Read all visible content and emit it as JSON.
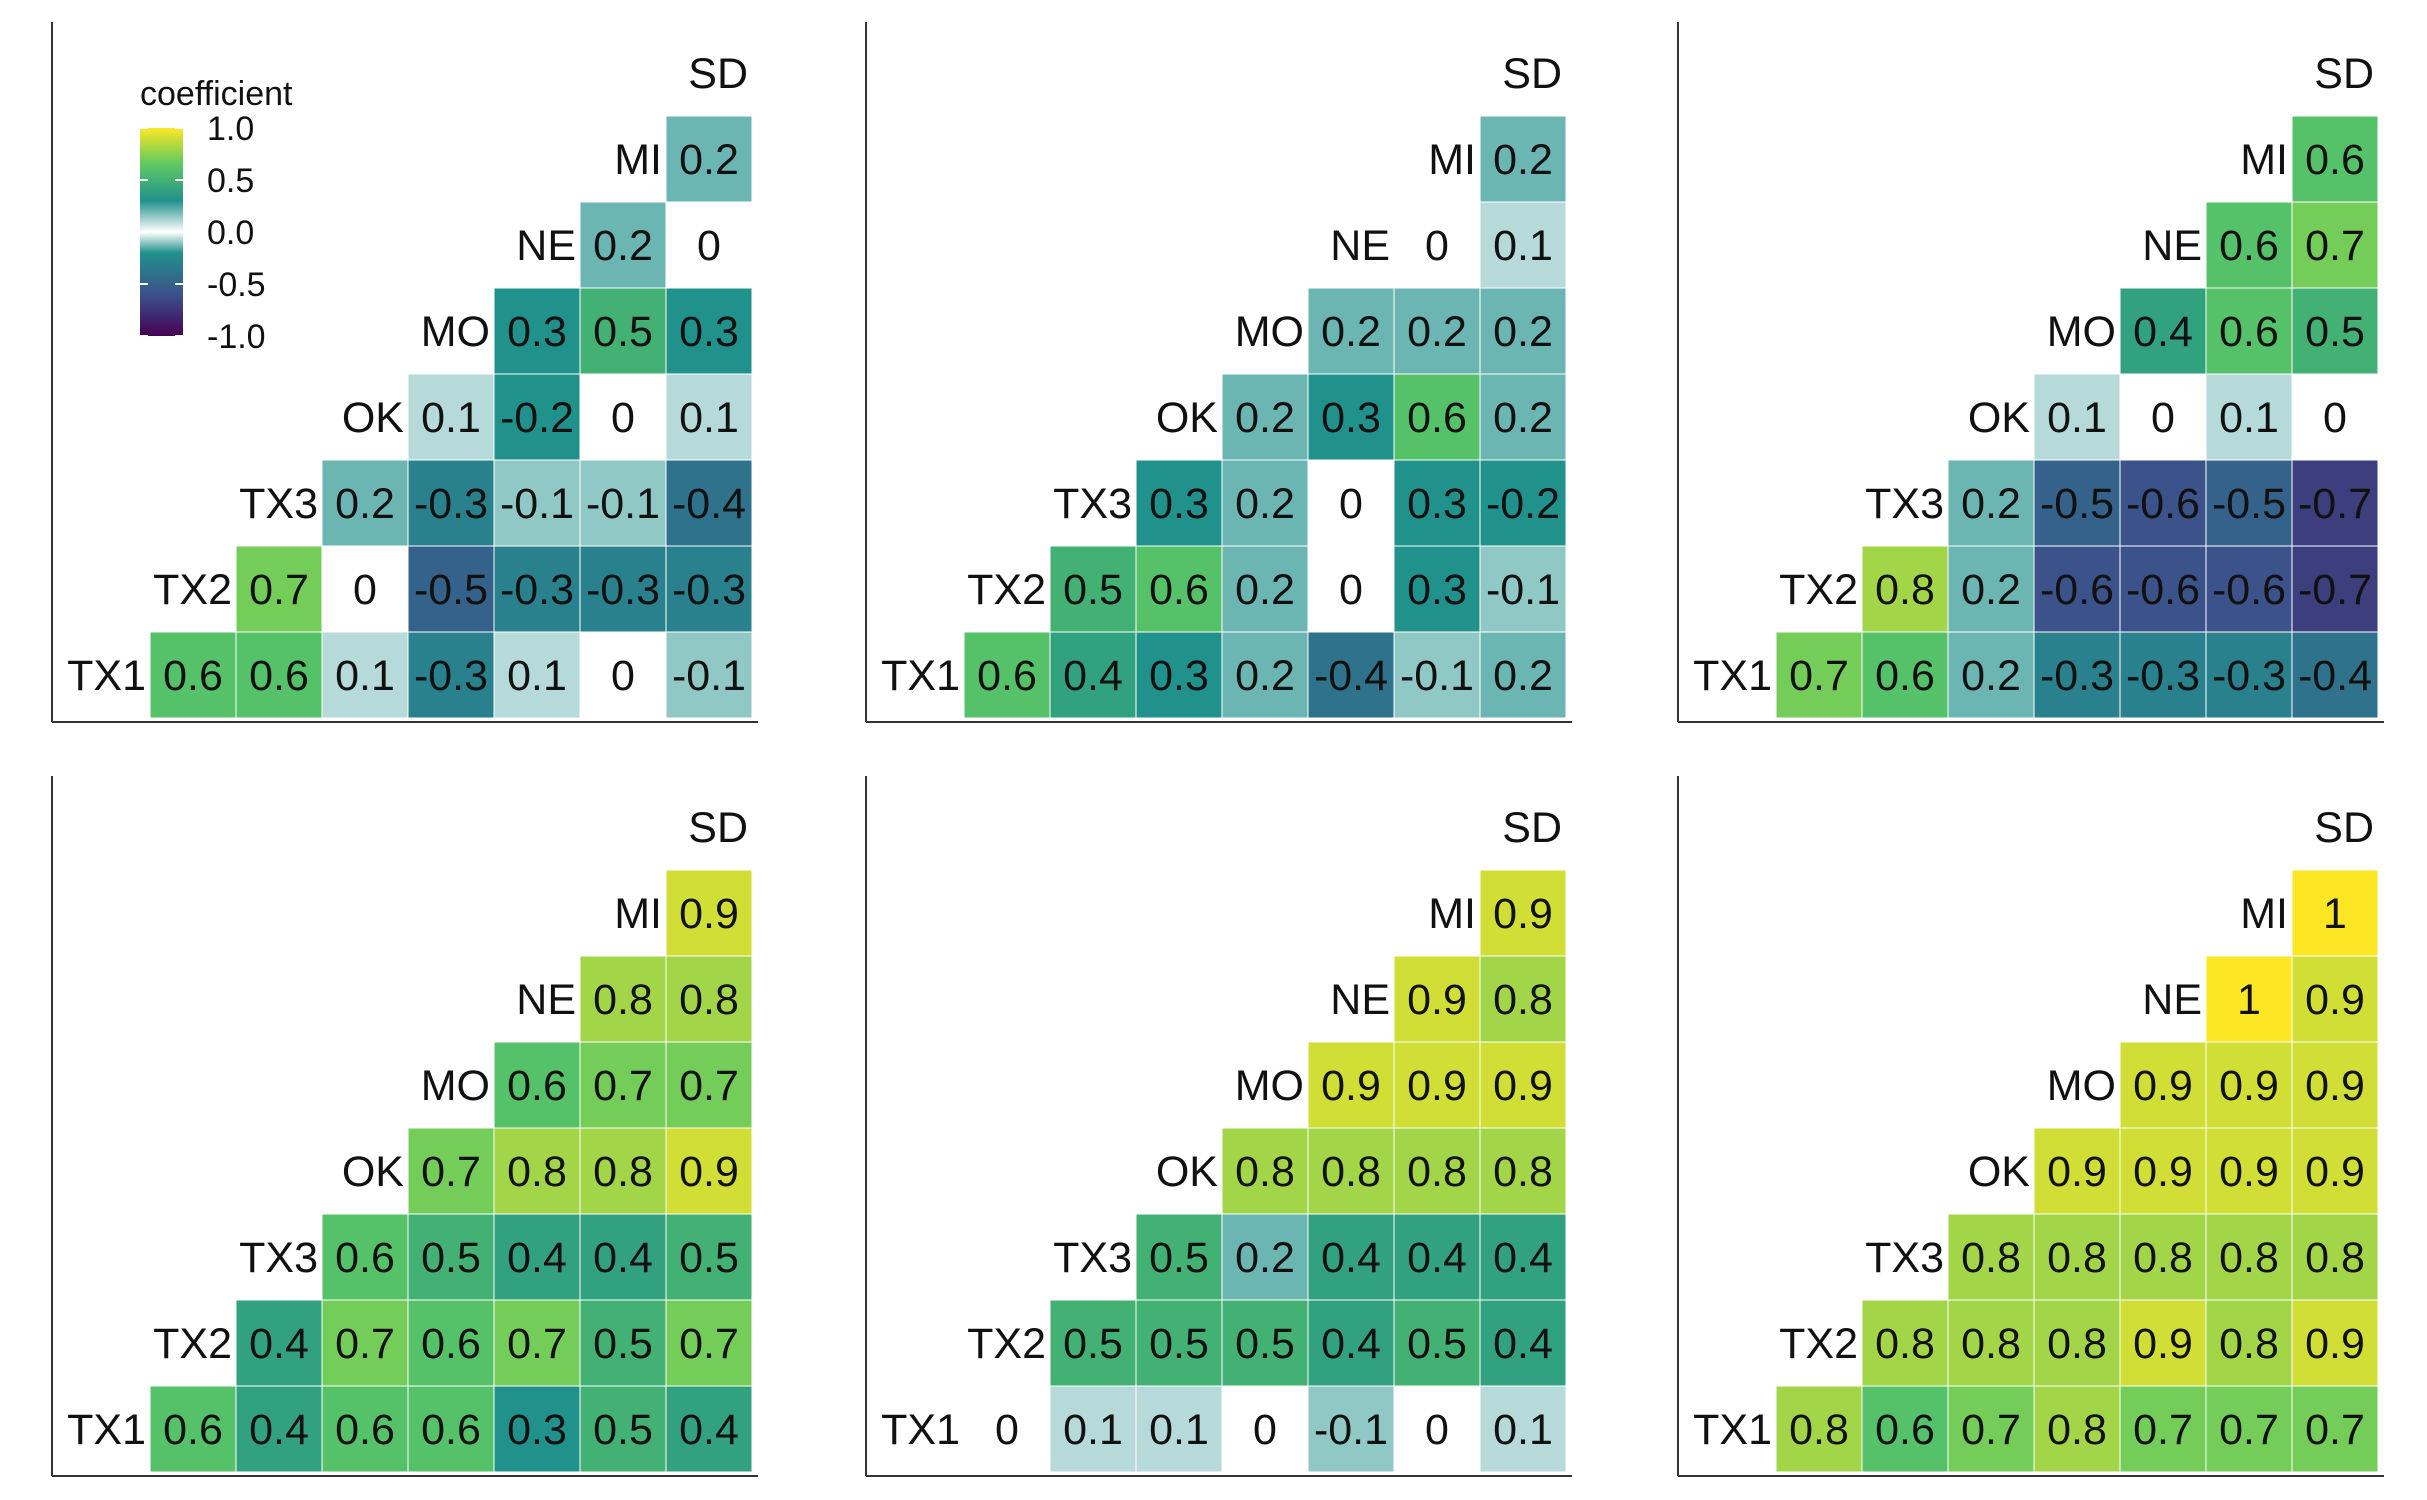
{
  "colors": {
    "scale": [
      "#440154",
      "#3b528b",
      "#21918c",
      "#ffffff",
      "#21918c",
      "#5ec962",
      "#fde725"
    ],
    "scale_stops": [
      -1.0,
      -0.6,
      -0.2,
      0.0,
      0.3,
      0.65,
      1.0
    ],
    "text": "#111111",
    "axis": "#333333"
  },
  "legend": {
    "title": "coefficient",
    "ticks": [
      {
        "value": 1.0,
        "label": "1.0"
      },
      {
        "value": 0.5,
        "label": "0.5"
      },
      {
        "value": 0.0,
        "label": "0.0"
      },
      {
        "value": -0.5,
        "label": "-0.5"
      },
      {
        "value": -1.0,
        "label": "-1.0"
      }
    ]
  },
  "chart_data": [
    {
      "type": "heatmap",
      "variables": [
        "TX1",
        "TX2",
        "TX3",
        "OK",
        "MO",
        "NE",
        "MI",
        "SD"
      ],
      "rows": [
        {
          "label": "TX1",
          "values": [
            0.6,
            0.6,
            0.1,
            -0.3,
            0.1,
            0,
            -0.1
          ]
        },
        {
          "label": "TX2",
          "values": [
            0.7,
            0,
            -0.5,
            -0.3,
            -0.3,
            -0.3
          ]
        },
        {
          "label": "TX3",
          "values": [
            0.2,
            -0.3,
            -0.1,
            -0.1,
            -0.4
          ]
        },
        {
          "label": "OK",
          "values": [
            0.1,
            -0.2,
            0,
            0.1
          ]
        },
        {
          "label": "MO",
          "values": [
            0.3,
            0.5,
            0.3
          ]
        },
        {
          "label": "NE",
          "values": [
            0.2,
            0
          ]
        },
        {
          "label": "MI",
          "values": [
            0.2
          ]
        },
        {
          "label": "SD",
          "values": []
        }
      ]
    },
    {
      "type": "heatmap",
      "variables": [
        "TX1",
        "TX2",
        "TX3",
        "OK",
        "MO",
        "NE",
        "MI",
        "SD"
      ],
      "rows": [
        {
          "label": "TX1",
          "values": [
            0.6,
            0.4,
            0.3,
            0.2,
            -0.4,
            -0.1,
            0.2
          ]
        },
        {
          "label": "TX2",
          "values": [
            0.5,
            0.6,
            0.2,
            0,
            0.3,
            -0.1
          ]
        },
        {
          "label": "TX3",
          "values": [
            0.3,
            0.2,
            0,
            0.3,
            -0.2
          ]
        },
        {
          "label": "OK",
          "values": [
            0.2,
            0.3,
            0.6,
            0.2
          ]
        },
        {
          "label": "MO",
          "values": [
            0.2,
            0.2,
            0.2
          ]
        },
        {
          "label": "NE",
          "values": [
            0,
            0.1
          ]
        },
        {
          "label": "MI",
          "values": [
            0.2
          ]
        },
        {
          "label": "SD",
          "values": []
        }
      ]
    },
    {
      "type": "heatmap",
      "variables": [
        "TX1",
        "TX2",
        "TX3",
        "OK",
        "MO",
        "NE",
        "MI",
        "SD"
      ],
      "rows": [
        {
          "label": "TX1",
          "values": [
            0.7,
            0.6,
            0.2,
            -0.3,
            -0.3,
            -0.3,
            -0.4
          ]
        },
        {
          "label": "TX2",
          "values": [
            0.8,
            0.2,
            -0.6,
            -0.6,
            -0.6,
            -0.7
          ]
        },
        {
          "label": "TX3",
          "values": [
            0.2,
            -0.5,
            -0.6,
            -0.5,
            -0.7
          ]
        },
        {
          "label": "OK",
          "values": [
            0.1,
            0,
            0.1,
            0
          ]
        },
        {
          "label": "MO",
          "values": [
            0.4,
            0.6,
            0.5
          ]
        },
        {
          "label": "NE",
          "values": [
            0.6,
            0.7
          ]
        },
        {
          "label": "MI",
          "values": [
            0.6
          ]
        },
        {
          "label": "SD",
          "values": []
        }
      ]
    },
    {
      "type": "heatmap",
      "variables": [
        "TX1",
        "TX2",
        "TX3",
        "OK",
        "MO",
        "NE",
        "MI",
        "SD"
      ],
      "rows": [
        {
          "label": "TX1",
          "values": [
            0.6,
            0.4,
            0.6,
            0.6,
            0.3,
            0.5,
            0.4
          ]
        },
        {
          "label": "TX2",
          "values": [
            0.4,
            0.7,
            0.6,
            0.7,
            0.5,
            0.7
          ]
        },
        {
          "label": "TX3",
          "values": [
            0.6,
            0.5,
            0.4,
            0.4,
            0.5
          ]
        },
        {
          "label": "OK",
          "values": [
            0.7,
            0.8,
            0.8,
            0.9
          ]
        },
        {
          "label": "MO",
          "values": [
            0.6,
            0.7,
            0.7
          ]
        },
        {
          "label": "NE",
          "values": [
            0.8,
            0.8
          ]
        },
        {
          "label": "MI",
          "values": [
            0.9
          ]
        },
        {
          "label": "SD",
          "values": []
        }
      ]
    },
    {
      "type": "heatmap",
      "variables": [
        "TX1",
        "TX2",
        "TX3",
        "OK",
        "MO",
        "NE",
        "MI",
        "SD"
      ],
      "rows": [
        {
          "label": "TX1",
          "values": [
            0,
            0.1,
            0.1,
            0,
            -0.1,
            0,
            0.1
          ]
        },
        {
          "label": "TX2",
          "values": [
            0.5,
            0.5,
            0.5,
            0.4,
            0.5,
            0.4
          ]
        },
        {
          "label": "TX3",
          "values": [
            0.5,
            0.2,
            0.4,
            0.4,
            0.4
          ]
        },
        {
          "label": "OK",
          "values": [
            0.8,
            0.8,
            0.8,
            0.8
          ]
        },
        {
          "label": "MO",
          "values": [
            0.9,
            0.9,
            0.9
          ]
        },
        {
          "label": "NE",
          "values": [
            0.9,
            0.8
          ]
        },
        {
          "label": "MI",
          "values": [
            0.9
          ]
        },
        {
          "label": "SD",
          "values": []
        }
      ]
    },
    {
      "type": "heatmap",
      "variables": [
        "TX1",
        "TX2",
        "TX3",
        "OK",
        "MO",
        "NE",
        "MI",
        "SD"
      ],
      "rows": [
        {
          "label": "TX1",
          "values": [
            0.8,
            0.6,
            0.7,
            0.8,
            0.7,
            0.7,
            0.7
          ]
        },
        {
          "label": "TX2",
          "values": [
            0.8,
            0.8,
            0.8,
            0.9,
            0.8,
            0.9
          ]
        },
        {
          "label": "TX3",
          "values": [
            0.8,
            0.8,
            0.8,
            0.8,
            0.8
          ]
        },
        {
          "label": "OK",
          "values": [
            0.9,
            0.9,
            0.9,
            0.9
          ]
        },
        {
          "label": "MO",
          "values": [
            0.9,
            0.9,
            0.9
          ]
        },
        {
          "label": "NE",
          "values": [
            1,
            0.9
          ]
        },
        {
          "label": "MI",
          "values": [
            1
          ]
        },
        {
          "label": "SD",
          "values": []
        }
      ]
    }
  ]
}
